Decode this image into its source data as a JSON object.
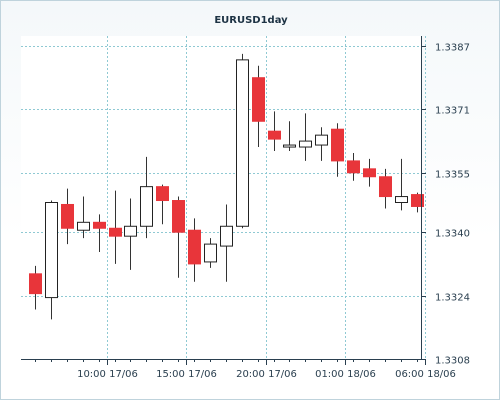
{
  "chart_data": {
    "type": "candlestick",
    "title": "EURUSD1day",
    "ylim": [
      1.3308,
      1.3387
    ],
    "y_ticks": [
      "1.3387",
      "1.3371",
      "1.3355",
      "1.3340",
      "1.3324",
      "1.3308"
    ],
    "x_ticks": [
      "10:00 17/06",
      "15:00 17/06",
      "20:00 17/06",
      "01:00 18/06",
      "06:00 18/06"
    ],
    "x_tick_after_candle": [
      4.5,
      9.5,
      14.5,
      19.5,
      24.5
    ],
    "grid": true,
    "colors": {
      "up": "#ffffff",
      "down": "#e8353a",
      "grid": "#8fc9d3",
      "axis": "#2a3f4f",
      "wick": "#333333"
    },
    "candles": [
      {
        "open": 1.33295,
        "high": 1.33315,
        "low": 1.33205,
        "close": 1.33245
      },
      {
        "open": 1.33235,
        "high": 1.3348,
        "low": 1.3318,
        "close": 1.33475
      },
      {
        "open": 1.3347,
        "high": 1.3351,
        "low": 1.3337,
        "close": 1.3341
      },
      {
        "open": 1.33405,
        "high": 1.3349,
        "low": 1.33385,
        "close": 1.33425
      },
      {
        "open": 1.33425,
        "high": 1.33445,
        "low": 1.3335,
        "close": 1.3341
      },
      {
        "open": 1.3341,
        "high": 1.33505,
        "low": 1.3332,
        "close": 1.3339
      },
      {
        "open": 1.3339,
        "high": 1.33485,
        "low": 1.33305,
        "close": 1.33415
      },
      {
        "open": 1.33415,
        "high": 1.3359,
        "low": 1.33385,
        "close": 1.33515
      },
      {
        "open": 1.33515,
        "high": 1.3352,
        "low": 1.3342,
        "close": 1.3348
      },
      {
        "open": 1.3348,
        "high": 1.3349,
        "low": 1.33285,
        "close": 1.334
      },
      {
        "open": 1.33405,
        "high": 1.33435,
        "low": 1.33275,
        "close": 1.3332
      },
      {
        "open": 1.33325,
        "high": 1.33385,
        "low": 1.3331,
        "close": 1.3337
      },
      {
        "open": 1.33365,
        "high": 1.3347,
        "low": 1.33275,
        "close": 1.33415
      },
      {
        "open": 1.33415,
        "high": 1.3385,
        "low": 1.3341,
        "close": 1.33835
      },
      {
        "open": 1.3379,
        "high": 1.3382,
        "low": 1.33615,
        "close": 1.3368
      },
      {
        "open": 1.33655,
        "high": 1.33705,
        "low": 1.33605,
        "close": 1.33635
      },
      {
        "open": 1.3362,
        "high": 1.3368,
        "low": 1.33605,
        "close": 1.3362
      },
      {
        "open": 1.33615,
        "high": 1.337,
        "low": 1.3358,
        "close": 1.3363
      },
      {
        "open": 1.3362,
        "high": 1.33665,
        "low": 1.3358,
        "close": 1.33645
      },
      {
        "open": 1.3366,
        "high": 1.33675,
        "low": 1.3354,
        "close": 1.3358
      },
      {
        "open": 1.3358,
        "high": 1.336,
        "low": 1.3353,
        "close": 1.3355
      },
      {
        "open": 1.3356,
        "high": 1.33585,
        "low": 1.33515,
        "close": 1.3354
      },
      {
        "open": 1.3354,
        "high": 1.3356,
        "low": 1.3346,
        "close": 1.3349
      },
      {
        "open": 1.33475,
        "high": 1.33585,
        "low": 1.33455,
        "close": 1.3349
      },
      {
        "open": 1.33495,
        "high": 1.335,
        "low": 1.3345,
        "close": 1.33465
      }
    ]
  }
}
